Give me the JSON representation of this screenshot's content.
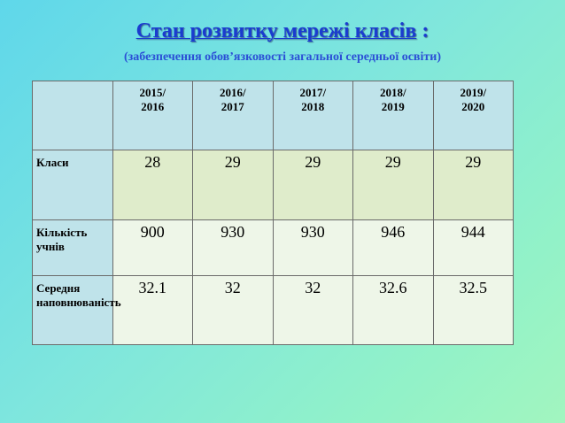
{
  "title": {
    "main": "Стан розвитку мережі класів",
    "suffix": " :"
  },
  "subtitle": "(забезпечення обов’язковості загальної середньої освіти)",
  "table": {
    "years": [
      [
        "2015/",
        "2016"
      ],
      [
        "2016/",
        "2017"
      ],
      [
        "2017/",
        "2018"
      ],
      [
        "2018/",
        "2019"
      ],
      [
        "2019/",
        "2020"
      ]
    ],
    "rows": [
      {
        "label": [
          "Класи"
        ],
        "values": [
          "28",
          "29",
          "29",
          "29",
          "29"
        ]
      },
      {
        "label": [
          "Кількість учнів"
        ],
        "values": [
          "900",
          "930",
          "930",
          "946",
          "944"
        ]
      },
      {
        "label": [
          "Середня",
          "наповнюваність"
        ],
        "values": [
          "32.1",
          "32",
          "32",
          "32.6",
          "32.5"
        ]
      }
    ]
  },
  "colors": {
    "title": "#1a3ccf",
    "header_cell": "#bfe3ea",
    "row1_cell": "#dfeccb",
    "row_cell": "#eef6e8"
  }
}
